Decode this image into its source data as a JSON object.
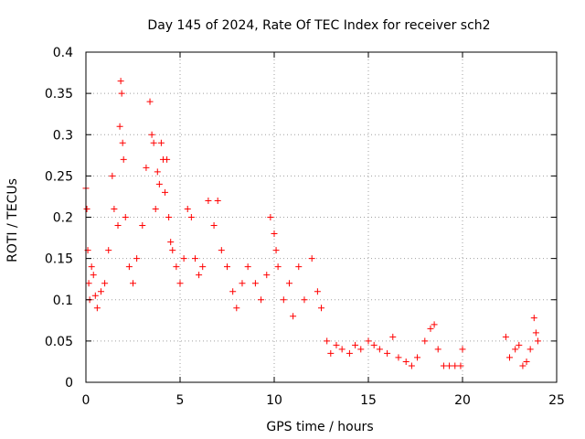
{
  "chart_data": {
    "type": "scatter",
    "title": "Day 145 of 2024, Rate Of TEC Index for receiver sch2",
    "xlabel": "GPS time / hours",
    "ylabel": "ROTI / TECUs",
    "xlim": [
      0,
      25
    ],
    "ylim": [
      0,
      0.4
    ],
    "x_ticks": [
      0,
      5,
      10,
      15,
      20,
      25
    ],
    "x_tick_labels": [
      "0",
      "5",
      "10",
      "15",
      "20",
      "25"
    ],
    "y_ticks": [
      0,
      0.05,
      0.1,
      0.15,
      0.2,
      0.25,
      0.3,
      0.35,
      0.4
    ],
    "y_tick_labels": [
      "0",
      "0.05",
      "0.1",
      "0.15",
      "0.2",
      "0.25",
      "0.3",
      "0.35",
      "0.4"
    ],
    "grid": true,
    "marker": "+",
    "color": "#ff0000",
    "series": [
      {
        "x": [
          0.0,
          0.05,
          0.1,
          0.15,
          0.2,
          0.3,
          0.4,
          0.5,
          0.6,
          0.8,
          1.0,
          1.2,
          1.4,
          1.5,
          1.7,
          1.8,
          1.85,
          1.9,
          1.95,
          2.0,
          2.1,
          2.3,
          2.5,
          2.7,
          3.0,
          3.2,
          3.4,
          3.5,
          3.6,
          3.7,
          3.8,
          3.9,
          4.0,
          4.1,
          4.2,
          4.3,
          4.4,
          4.5,
          4.6,
          4.8,
          5.0,
          5.2,
          5.4,
          5.6,
          5.8,
          6.0,
          6.2,
          6.5,
          6.8,
          7.0,
          7.2,
          7.5,
          7.8,
          8.0,
          8.3,
          8.6,
          9.0,
          9.3,
          9.6,
          9.8,
          10.0,
          10.1,
          10.2,
          10.5,
          10.8,
          11.0,
          11.3,
          11.6,
          12.0,
          12.3,
          12.5,
          12.8,
          13.0,
          13.3,
          13.6,
          14.0,
          14.3,
          14.6,
          15.0,
          15.3,
          15.6,
          16.0,
          16.3,
          16.6,
          17.0,
          17.3,
          17.6,
          18.0,
          18.3,
          18.5,
          18.7,
          19.0,
          19.3,
          19.6,
          19.9,
          20.0,
          22.3,
          22.5,
          22.8,
          23.0,
          23.2,
          23.4,
          23.6,
          23.8,
          23.9,
          24.0
        ],
        "y": [
          0.235,
          0.21,
          0.16,
          0.12,
          0.1,
          0.14,
          0.13,
          0.105,
          0.09,
          0.11,
          0.12,
          0.16,
          0.25,
          0.21,
          0.19,
          0.31,
          0.365,
          0.35,
          0.29,
          0.27,
          0.2,
          0.14,
          0.12,
          0.15,
          0.19,
          0.26,
          0.34,
          0.3,
          0.29,
          0.21,
          0.255,
          0.24,
          0.29,
          0.27,
          0.23,
          0.27,
          0.2,
          0.17,
          0.16,
          0.14,
          0.12,
          0.15,
          0.21,
          0.2,
          0.15,
          0.13,
          0.14,
          0.22,
          0.19,
          0.22,
          0.16,
          0.14,
          0.11,
          0.09,
          0.12,
          0.14,
          0.12,
          0.1,
          0.13,
          0.2,
          0.18,
          0.16,
          0.14,
          0.1,
          0.12,
          0.08,
          0.14,
          0.1,
          0.15,
          0.11,
          0.09,
          0.05,
          0.035,
          0.045,
          0.04,
          0.035,
          0.045,
          0.04,
          0.05,
          0.045,
          0.04,
          0.035,
          0.055,
          0.03,
          0.025,
          0.02,
          0.03,
          0.05,
          0.065,
          0.07,
          0.04,
          0.02,
          0.02,
          0.02,
          0.02,
          0.04,
          0.055,
          0.03,
          0.04,
          0.045,
          0.02,
          0.025,
          0.04,
          0.078,
          0.06,
          0.05
        ]
      }
    ]
  }
}
